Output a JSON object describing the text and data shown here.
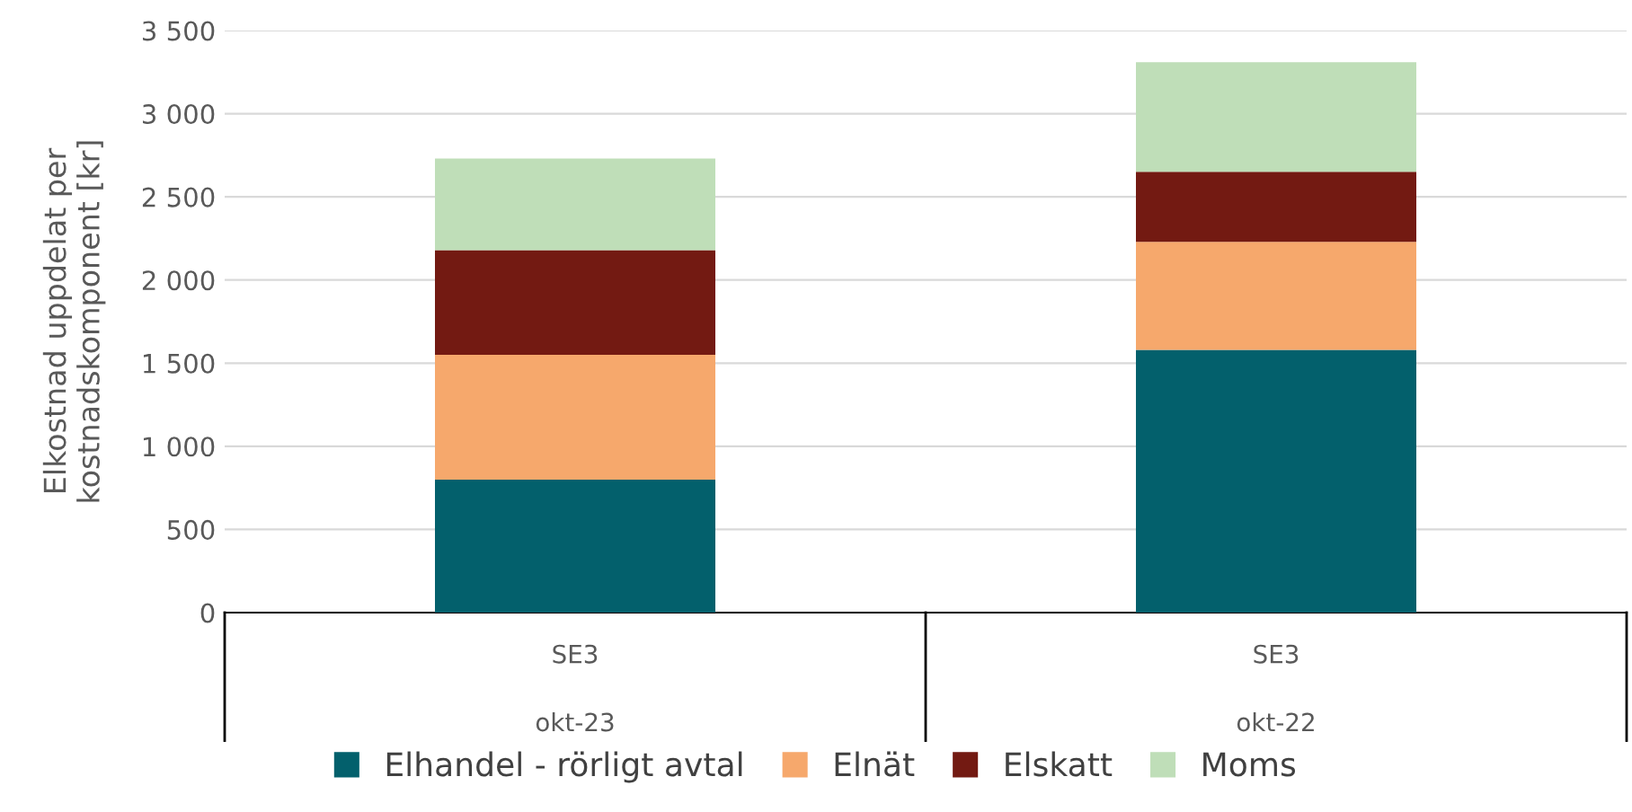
{
  "chart_data": {
    "type": "bar",
    "stacked": true,
    "ylabel": "Elkostnad uppdelat per kostnadskomponent [kr]",
    "categories": [
      "SE3\nokt-23",
      "SE3\nokt-22"
    ],
    "series": [
      {
        "name": "Elhandel - rörligt avtal",
        "color": "#03606c",
        "values": [
          800,
          1580
        ]
      },
      {
        "name": "Elnät",
        "color": "#f6a86c",
        "values": [
          750,
          650
        ]
      },
      {
        "name": "Elskatt",
        "color": "#731a12",
        "values": [
          630,
          420
        ]
      },
      {
        "name": "Moms",
        "color": "#bfdeb8",
        "values": [
          550,
          660
        ]
      }
    ],
    "ylim": [
      0,
      3500
    ],
    "yticks": [
      {
        "value": 0,
        "label": "0"
      },
      {
        "value": 500,
        "label": "500"
      },
      {
        "value": 1000,
        "label": "1 000"
      },
      {
        "value": 1500,
        "label": "1 500"
      },
      {
        "value": 2000,
        "label": "2 000"
      },
      {
        "value": 2500,
        "label": "2 500"
      },
      {
        "value": 3000,
        "label": "3 000"
      },
      {
        "value": 3500,
        "label": "3 500"
      }
    ],
    "grid": "y",
    "legend": "bottom"
  }
}
